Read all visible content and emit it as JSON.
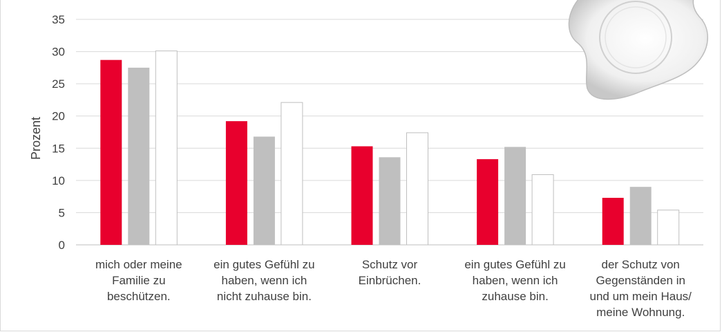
{
  "chart_data": {
    "type": "bar",
    "ylabel": "Prozent",
    "ylim": [
      0,
      35
    ],
    "yticks": [
      0,
      5,
      10,
      15,
      20,
      25,
      30,
      35
    ],
    "grid": true,
    "categories": [
      [
        "mich oder meine",
        "Familie zu",
        "beschützen."
      ],
      [
        "ein gutes Gefühl zu",
        "haben, wenn ich",
        "nicht zuhause bin."
      ],
      [
        "Schutz vor",
        "Einbrüchen."
      ],
      [
        "ein gutes Gefühl zu",
        "haben, wenn ich",
        "zuhause bin."
      ],
      [
        "der Schutz von",
        "Gegenständen in",
        "und um mein Haus/",
        "meine Wohnung."
      ]
    ],
    "series": [
      {
        "color": "#e8002d",
        "values": [
          28.7,
          19.2,
          15.3,
          13.3,
          7.3
        ]
      },
      {
        "color": "#bfbfbf",
        "values": [
          27.5,
          16.8,
          13.6,
          15.2,
          9.0
        ]
      },
      {
        "color": "#ffffff",
        "values": [
          30.1,
          22.1,
          17.4,
          10.9,
          5.4
        ]
      }
    ]
  }
}
